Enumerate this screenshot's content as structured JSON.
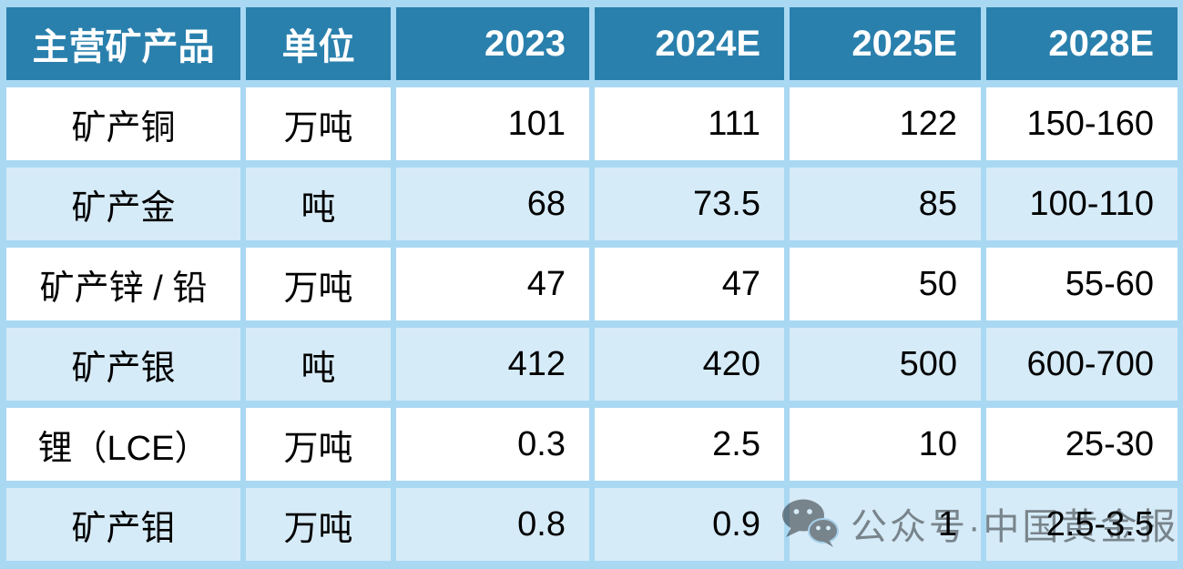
{
  "chart_data": {
    "type": "table",
    "columns": [
      "主营矿产品",
      "单位",
      "2023",
      "2024E",
      "2025E",
      "2028E"
    ],
    "rows": [
      {
        "cells": [
          "矿产铜",
          "万吨",
          "101",
          "111",
          "122",
          "150-160"
        ]
      },
      {
        "cells": [
          "矿产金",
          "吨",
          "68",
          "73.5",
          "85",
          "100-110"
        ]
      },
      {
        "cells": [
          "矿产锌 / 铅",
          "万吨",
          "47",
          "47",
          "50",
          "55-60"
        ]
      },
      {
        "cells": [
          "矿产银",
          "吨",
          "412",
          "420",
          "500",
          "600-700"
        ]
      },
      {
        "cells": [
          "锂（LCE）",
          "万吨",
          "0.3",
          "2.5",
          "10",
          "25-30"
        ]
      },
      {
        "cells": [
          "矿产钼",
          "万吨",
          "0.8",
          "0.9",
          "1",
          "2.5-3.5"
        ]
      }
    ],
    "title": "",
    "layout": {
      "header_align": [
        "center",
        "center",
        "right",
        "right",
        "right",
        "right"
      ],
      "grid": "spaced-cells"
    }
  },
  "watermark": {
    "text": "公众号·中国黄金报",
    "icon": "wechat-icon"
  },
  "colors": {
    "header_bg": "#2a80ad",
    "header_text": "#ffffff",
    "row_bg": "#ffffff",
    "row_alt_bg": "#d6ebf8",
    "grid_gap": "#a9d8f3",
    "cell_text": "#000000",
    "watermark_gray": "#8f8f8f"
  }
}
